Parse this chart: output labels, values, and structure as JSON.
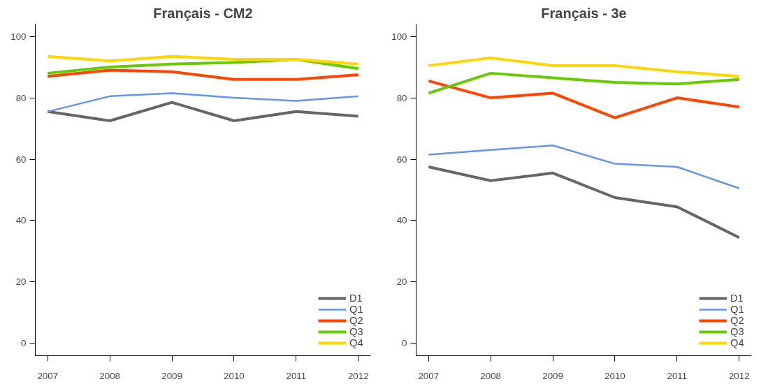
{
  "chart_data": [
    {
      "type": "line",
      "title": "Français - CM2",
      "x": [
        2007,
        2008,
        2009,
        2010,
        2011,
        2012
      ],
      "xlim": [
        2006.8,
        2012.2
      ],
      "xticks": [
        2007,
        2008,
        2009,
        2010,
        2011,
        2012
      ],
      "ylim": [
        -4,
        104
      ],
      "yticks": [
        0,
        20,
        40,
        60,
        80,
        100
      ],
      "legend": "bottom right",
      "grid": false,
      "series": [
        {
          "name": "D1",
          "color": "#666666",
          "values": [
            75.5,
            72.5,
            78.5,
            72.5,
            75.5,
            74
          ]
        },
        {
          "name": "Q1",
          "color": "#6495ed",
          "values": [
            75.5,
            80.5,
            81.5,
            80,
            79,
            80.5
          ]
        },
        {
          "name": "Q2",
          "color": "#ff4500",
          "values": [
            87,
            89,
            88.5,
            86,
            86,
            87.5
          ]
        },
        {
          "name": "Q3",
          "color": "#66cc00",
          "values": [
            88,
            90,
            91,
            91.5,
            92.5,
            89.5
          ]
        },
        {
          "name": "Q4",
          "color": "#ffd700",
          "values": [
            93.5,
            92,
            93.5,
            92.5,
            92.5,
            91
          ]
        }
      ]
    },
    {
      "type": "line",
      "title": "Français - 3e",
      "x": [
        2007,
        2008,
        2009,
        2010,
        2011,
        2012
      ],
      "xlim": [
        2006.8,
        2012.2
      ],
      "xticks": [
        2007,
        2008,
        2009,
        2010,
        2011,
        2012
      ],
      "ylim": [
        -4,
        104
      ],
      "yticks": [
        0,
        20,
        40,
        60,
        80,
        100
      ],
      "legend": "bottom right",
      "grid": false,
      "series": [
        {
          "name": "D1",
          "color": "#666666",
          "values": [
            57.5,
            53,
            55.5,
            47.5,
            44.5,
            34.5
          ]
        },
        {
          "name": "Q1",
          "color": "#6495ed",
          "values": [
            61.5,
            63,
            64.5,
            58.5,
            57.5,
            50.5
          ]
        },
        {
          "name": "Q2",
          "color": "#ff4500",
          "values": [
            85.5,
            80,
            81.5,
            73.5,
            80,
            77
          ]
        },
        {
          "name": "Q3",
          "color": "#66cc00",
          "values": [
            81.5,
            88,
            86.5,
            85,
            84.5,
            86
          ]
        },
        {
          "name": "Q4",
          "color": "#ffd700",
          "values": [
            90.5,
            93,
            90.5,
            90.5,
            88.5,
            87
          ]
        }
      ]
    }
  ]
}
